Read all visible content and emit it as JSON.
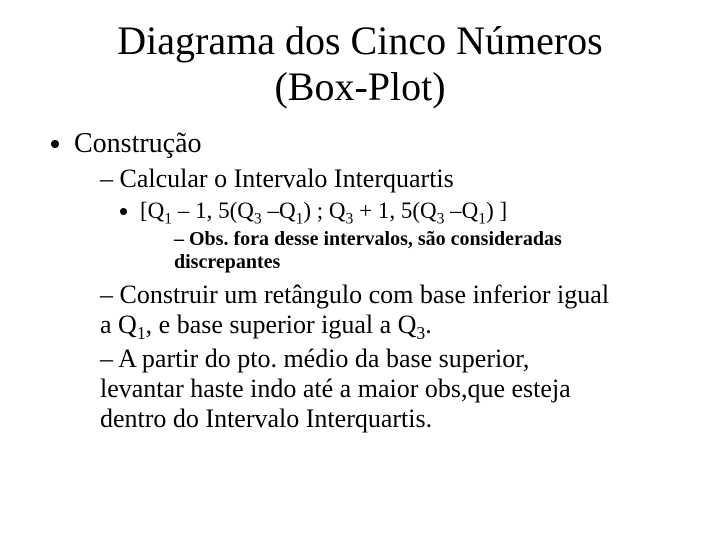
{
  "title_line1": "Diagrama dos Cinco Números",
  "title_line2": "(Box-Plot)",
  "b1": "Construção",
  "b2a": "Calcular o Intervalo Interquartis",
  "formula": {
    "open": "[Q",
    "s1": "1",
    "minus": " – 1, 5(Q",
    "s3a": "3",
    "mid1": " –Q",
    "s1b": "1",
    "close1": ") ; Q",
    "s3b": "3",
    "plus": " + 1, 5(Q",
    "s3c": "3",
    "mid2": " –Q",
    "s1c": "1",
    "close2": ") ]"
  },
  "obs_l1": "Obs. fora desse intervalos, são consideradas",
  "obs_l2": "discrepantes",
  "b2b_l1": "Construir um retângulo com base inferior igual",
  "b2b_q1pre": "a Q",
  "b2b_q1sub": "1",
  "b2b_q1mid": ", e base superior igual a Q",
  "b2b_q3sub": "3",
  "b2b_q3end": ".",
  "b2c_l1": "A partir do pto. médio da base superior,",
  "b2c_l2": "levantar haste indo até a maior obs,que esteja",
  "b2c_l3": "dentro do Intervalo Interquartis.",
  "style": {
    "background": "#ffffff",
    "text_color": "#000000",
    "title_fontsize": 40,
    "lvl1_fontsize": 28,
    "lvl2_fontsize": 26,
    "lvl3_fontsize": 23,
    "lvl4_fontsize": 20,
    "font_family": "Times New Roman"
  }
}
